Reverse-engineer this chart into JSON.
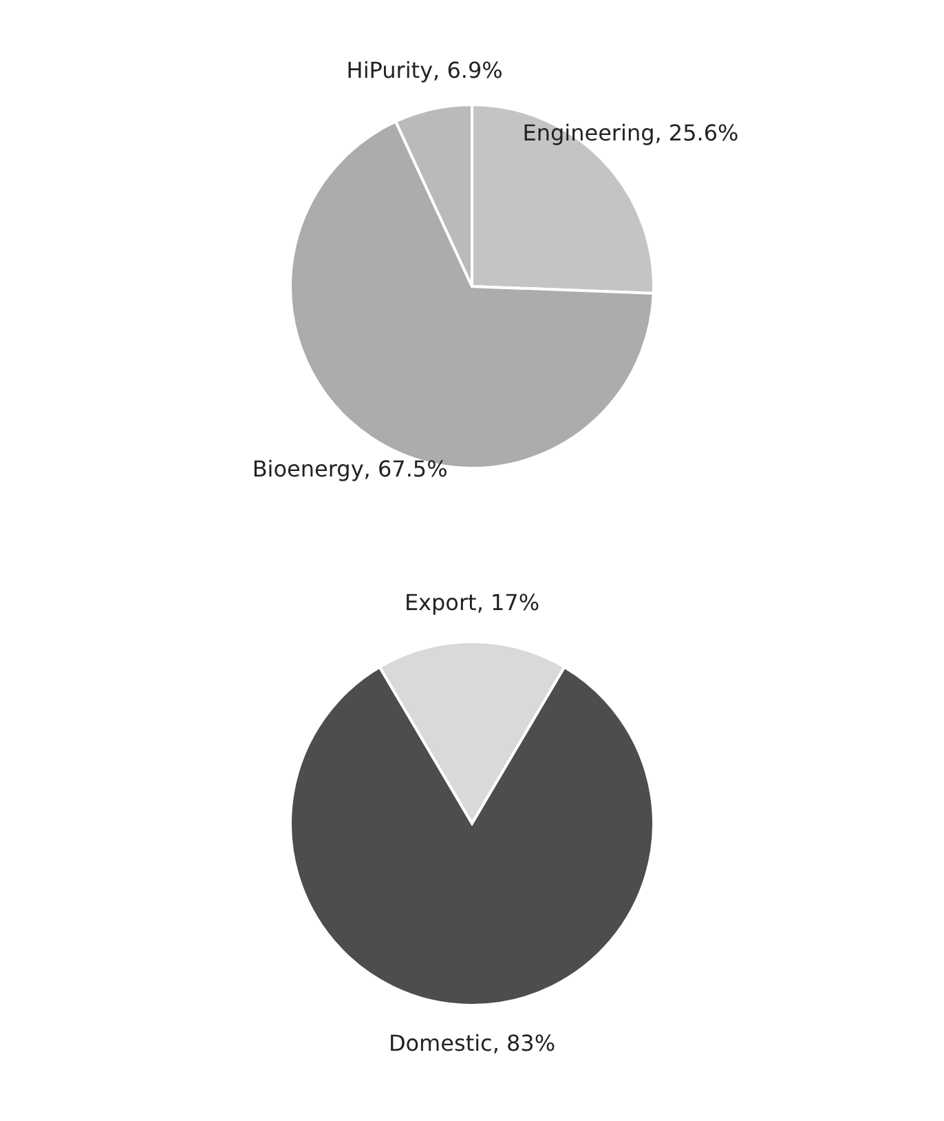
{
  "chart_data": [
    {
      "type": "pie",
      "categories": [
        "Engineering",
        "Bioenergy",
        "HiPurity"
      ],
      "values": [
        25.6,
        67.5,
        6.9
      ],
      "value_labels": [
        "25.6%",
        "67.5%",
        "6.9%"
      ],
      "colors": [
        "#c4c4c4",
        "#acacac",
        "#bababa"
      ]
    },
    {
      "type": "pie",
      "categories": [
        "Export",
        "Domestic"
      ],
      "values": [
        17,
        83
      ],
      "value_labels": [
        "17%",
        "83%"
      ],
      "colors": [
        "#d9d9d9",
        "#4d4d4d"
      ]
    }
  ]
}
